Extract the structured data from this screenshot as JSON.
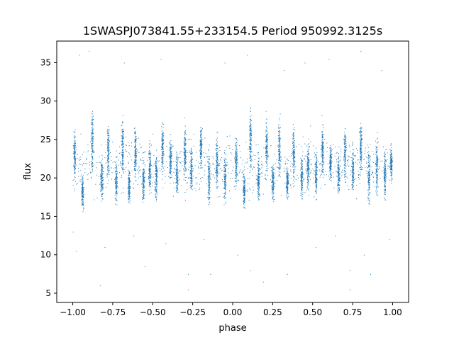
{
  "chart_data": {
    "type": "scatter",
    "title": "1SWASPJ073841.55+233154.5 Period 950992.3125s",
    "xlabel": "phase",
    "ylabel": "flux",
    "xlim": [
      -1.1,
      1.1
    ],
    "ylim": [
      3.8,
      37.8
    ],
    "xticks": [
      -1.0,
      -0.75,
      -0.5,
      -0.25,
      0.0,
      0.25,
      0.5,
      0.75,
      1.0
    ],
    "xtick_labels": [
      "−1.00",
      "−0.75",
      "−0.50",
      "−0.25",
      "0.00",
      "0.25",
      "0.50",
      "0.75",
      "1.00"
    ],
    "yticks": [
      5,
      10,
      15,
      20,
      25,
      30,
      35
    ],
    "ytick_labels": [
      "5",
      "10",
      "15",
      "20",
      "25",
      "30",
      "35"
    ],
    "grid": false,
    "legend": "none",
    "point_color": "#1f77b4",
    "phase_range": [
      -1.0,
      1.0
    ],
    "clusters": [
      {
        "phase": -0.99,
        "center": 23.0,
        "low": 19.5,
        "high": 28.0
      },
      {
        "phase": -0.94,
        "center": 18.0,
        "low": 15.0,
        "high": 21.0
      },
      {
        "phase": -0.88,
        "center": 24.5,
        "low": 18.0,
        "high": 30.5
      },
      {
        "phase": -0.82,
        "center": 20.0,
        "low": 16.5,
        "high": 24.5
      },
      {
        "phase": -0.78,
        "center": 23.5,
        "low": 19.0,
        "high": 29.5
      },
      {
        "phase": -0.73,
        "center": 19.5,
        "low": 16.5,
        "high": 23.5
      },
      {
        "phase": -0.69,
        "center": 24.0,
        "low": 19.0,
        "high": 29.5
      },
      {
        "phase": -0.65,
        "center": 19.0,
        "low": 15.5,
        "high": 22.0
      },
      {
        "phase": -0.61,
        "center": 23.5,
        "low": 19.0,
        "high": 28.5
      },
      {
        "phase": -0.56,
        "center": 19.5,
        "low": 16.5,
        "high": 24.0
      },
      {
        "phase": -0.52,
        "center": 21.5,
        "low": 17.5,
        "high": 26.0
      },
      {
        "phase": -0.48,
        "center": 20.0,
        "low": 17.0,
        "high": 25.5
      },
      {
        "phase": -0.44,
        "center": 24.0,
        "low": 19.0,
        "high": 28.0
      },
      {
        "phase": -0.39,
        "center": 22.5,
        "low": 19.5,
        "high": 27.0
      },
      {
        "phase": -0.35,
        "center": 20.5,
        "low": 18.0,
        "high": 26.0
      },
      {
        "phase": -0.3,
        "center": 23.5,
        "low": 19.5,
        "high": 29.5
      },
      {
        "phase": -0.26,
        "center": 21.0,
        "low": 18.5,
        "high": 27.5
      },
      {
        "phase": -0.2,
        "center": 24.0,
        "low": 19.0,
        "high": 27.5
      },
      {
        "phase": -0.15,
        "center": 20.0,
        "low": 16.5,
        "high": 26.0
      },
      {
        "phase": -0.1,
        "center": 22.0,
        "low": 17.0,
        "high": 27.5
      },
      {
        "phase": -0.05,
        "center": 20.0,
        "low": 16.5,
        "high": 25.5
      },
      {
        "phase": 0.02,
        "center": 22.0,
        "low": 18.0,
        "high": 27.0
      },
      {
        "phase": 0.07,
        "center": 18.5,
        "low": 15.5,
        "high": 22.0
      },
      {
        "phase": 0.11,
        "center": 25.0,
        "low": 18.0,
        "high": 30.5
      },
      {
        "phase": 0.16,
        "center": 20.0,
        "low": 16.5,
        "high": 24.5
      },
      {
        "phase": 0.21,
        "center": 24.0,
        "low": 19.0,
        "high": 29.5
      },
      {
        "phase": 0.25,
        "center": 19.5,
        "low": 16.5,
        "high": 23.5
      },
      {
        "phase": 0.29,
        "center": 24.0,
        "low": 19.0,
        "high": 29.0
      },
      {
        "phase": 0.34,
        "center": 19.5,
        "low": 16.0,
        "high": 22.5
      },
      {
        "phase": 0.38,
        "center": 23.0,
        "low": 19.0,
        "high": 28.5
      },
      {
        "phase": 0.43,
        "center": 20.0,
        "low": 16.5,
        "high": 24.0
      },
      {
        "phase": 0.47,
        "center": 21.5,
        "low": 17.5,
        "high": 26.0
      },
      {
        "phase": 0.52,
        "center": 20.5,
        "low": 17.0,
        "high": 25.5
      },
      {
        "phase": 0.56,
        "center": 24.0,
        "low": 19.5,
        "high": 28.5
      },
      {
        "phase": 0.61,
        "center": 22.0,
        "low": 19.5,
        "high": 26.0
      },
      {
        "phase": 0.66,
        "center": 20.5,
        "low": 18.0,
        "high": 25.5
      },
      {
        "phase": 0.7,
        "center": 23.5,
        "low": 19.5,
        "high": 29.5
      },
      {
        "phase": 0.75,
        "center": 21.0,
        "low": 18.5,
        "high": 27.0
      },
      {
        "phase": 0.8,
        "center": 24.0,
        "low": 19.0,
        "high": 27.5
      },
      {
        "phase": 0.85,
        "center": 20.0,
        "low": 16.5,
        "high": 26.0
      },
      {
        "phase": 0.9,
        "center": 21.5,
        "low": 17.0,
        "high": 27.5
      },
      {
        "phase": 0.95,
        "center": 20.5,
        "low": 16.5,
        "high": 25.5
      },
      {
        "phase": 0.99,
        "center": 22.0,
        "low": 18.5,
        "high": 26.0
      }
    ],
    "outliers": [
      {
        "x": -0.96,
        "y": 36.0
      },
      {
        "x": -0.9,
        "y": 36.5
      },
      {
        "x": -0.83,
        "y": 6.0
      },
      {
        "x": -0.8,
        "y": 11.0
      },
      {
        "x": -0.68,
        "y": 35.0
      },
      {
        "x": -0.62,
        "y": 12.5
      },
      {
        "x": -0.55,
        "y": 8.5
      },
      {
        "x": -0.45,
        "y": 35.5
      },
      {
        "x": -0.42,
        "y": 11.5
      },
      {
        "x": -0.28,
        "y": 5.5
      },
      {
        "x": -0.28,
        "y": 7.5
      },
      {
        "x": -0.18,
        "y": 12.0
      },
      {
        "x": -0.14,
        "y": 7.5
      },
      {
        "x": -0.05,
        "y": 35.0
      },
      {
        "x": 0.03,
        "y": 10.0
      },
      {
        "x": 0.09,
        "y": 36.0
      },
      {
        "x": 0.11,
        "y": 8.0
      },
      {
        "x": 0.19,
        "y": 6.5
      },
      {
        "x": 0.32,
        "y": 34.0
      },
      {
        "x": 0.34,
        "y": 7.5
      },
      {
        "x": 0.45,
        "y": 35.0
      },
      {
        "x": 0.52,
        "y": 11.0
      },
      {
        "x": 0.6,
        "y": 35.5
      },
      {
        "x": 0.64,
        "y": 12.5
      },
      {
        "x": 0.73,
        "y": 5.5
      },
      {
        "x": 0.73,
        "y": 8.0
      },
      {
        "x": 0.8,
        "y": 36.5
      },
      {
        "x": 0.86,
        "y": 7.5
      },
      {
        "x": 0.93,
        "y": 34.0
      },
      {
        "x": 0.98,
        "y": 12.0
      },
      {
        "x": -1.0,
        "y": 13.0
      },
      {
        "x": -0.98,
        "y": 10.5
      },
      {
        "x": 0.82,
        "y": 10.0
      }
    ]
  }
}
